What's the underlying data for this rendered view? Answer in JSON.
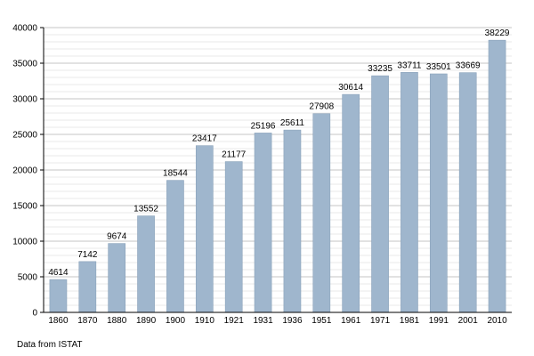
{
  "chart_data": {
    "type": "bar",
    "categories": [
      "1860",
      "1870",
      "1880",
      "1890",
      "1900",
      "1910",
      "1921",
      "1931",
      "1936",
      "1951",
      "1961",
      "1971",
      "1981",
      "1991",
      "2001",
      "2010"
    ],
    "values": [
      4614,
      7142,
      9674,
      13552,
      18544,
      23417,
      21177,
      25196,
      25611,
      27908,
      30614,
      33235,
      33711,
      33501,
      33669,
      38229
    ],
    "ylim": [
      0,
      40000
    ],
    "yticks": [
      0,
      5000,
      10000,
      15000,
      20000,
      25000,
      30000,
      35000,
      40000
    ],
    "minor_grid_step": 1000,
    "grid": true,
    "data_labels": true,
    "title": "",
    "xlabel": "",
    "ylabel": ""
  },
  "colors": {
    "bar_fill": "#9fb6cd",
    "bar_stroke": "#8aa2ba",
    "grid": "#d3d3d3",
    "axis": "#000000"
  },
  "footer": {
    "source": "Data from ISTAT"
  }
}
